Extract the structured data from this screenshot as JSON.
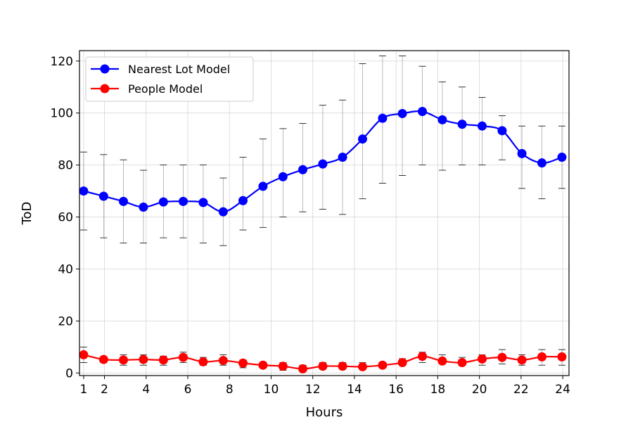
{
  "chart_data": {
    "type": "line",
    "title": "",
    "xlabel": "Hours",
    "ylabel": "ToD",
    "xlim": [
      0.8,
      24.3
    ],
    "ylim": [
      -1,
      124
    ],
    "xticks": [
      1,
      2,
      4,
      6,
      8,
      10,
      12,
      14,
      16,
      18,
      20,
      22,
      24
    ],
    "xtick_labels": [
      "1",
      "2",
      "4",
      "6",
      "8",
      "10",
      "12",
      "14",
      "16",
      "18",
      "20",
      "22",
      "24"
    ],
    "yticks": [
      0,
      20,
      40,
      60,
      80,
      100,
      120
    ],
    "ytick_labels": [
      "0",
      "20",
      "40",
      "60",
      "80",
      "100",
      "120"
    ],
    "grid": true,
    "legend_position": "top-left",
    "x": [
      1.0,
      1.96,
      2.91,
      3.87,
      4.83,
      5.78,
      6.74,
      7.7,
      8.65,
      9.61,
      10.57,
      11.52,
      12.48,
      13.43,
      14.39,
      15.35,
      16.3,
      17.26,
      18.22,
      19.17,
      20.13,
      21.09,
      22.04,
      23.0,
      23.96
    ],
    "series": [
      {
        "name": "Nearest Lot Model",
        "color": "#0000ff",
        "values": [
          70,
          68,
          66,
          63.8,
          65.8,
          66,
          65.6,
          62,
          66.3,
          71.8,
          75.5,
          78.2,
          80.4,
          83,
          90,
          98,
          99.8,
          100.6,
          97.4,
          95.7,
          95,
          93.2,
          84.4,
          80.8,
          83
        ],
        "err_low": [
          55,
          52,
          50,
          50,
          52,
          52,
          50,
          49,
          55,
          56,
          60,
          62,
          63,
          61,
          67,
          73,
          76,
          80,
          78,
          80,
          80,
          82,
          71,
          67,
          71
        ],
        "err_high": [
          85,
          84,
          82,
          78,
          80,
          80,
          80,
          75,
          83,
          90,
          94,
          96,
          103,
          105,
          119,
          122,
          122,
          118,
          112,
          110,
          106,
          99,
          95,
          95,
          95
        ]
      },
      {
        "name": "People Model",
        "color": "#ff0000",
        "values": [
          7,
          5.2,
          5,
          5.2,
          5,
          6,
          4.3,
          4.8,
          3.8,
          3,
          2.6,
          1.6,
          2.6,
          2.6,
          2.4,
          3,
          4,
          6.4,
          4.6,
          4,
          5.4,
          6,
          5,
          6.2,
          6.2
        ],
        "err_low": [
          4,
          4,
          3,
          3,
          3,
          4,
          3,
          3,
          2,
          2,
          1,
          1,
          1.5,
          1.5,
          1.5,
          2,
          3,
          4,
          3.5,
          3,
          3,
          3.5,
          3,
          3,
          3
        ],
        "err_high": [
          10,
          6,
          7,
          7,
          6.5,
          8,
          6,
          7,
          5,
          4,
          4,
          3,
          4,
          4,
          4,
          4,
          5.5,
          8,
          7,
          6,
          7,
          9,
          7,
          9,
          9
        ]
      }
    ]
  }
}
